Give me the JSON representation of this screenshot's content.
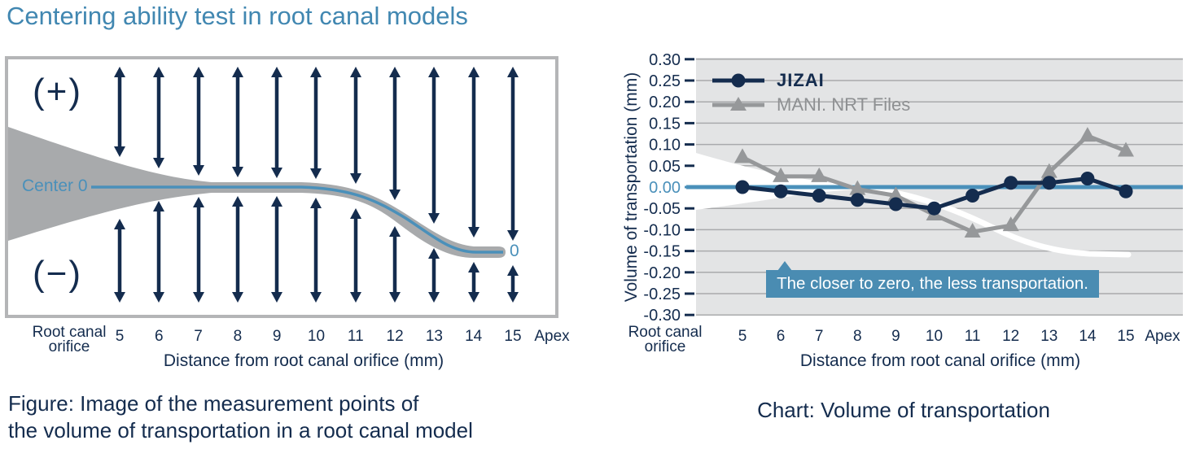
{
  "title": "Centering ability test in root canal models",
  "figure": {
    "plus_label": "(+)",
    "minus_label": "(−)",
    "center_label": "Center 0",
    "zero_label": "0",
    "x_axis": {
      "origin_line1": "Root canal",
      "origin_line2": "orifice",
      "ticks": [
        "5",
        "6",
        "7",
        "8",
        "9",
        "10",
        "11",
        "12",
        "13",
        "14",
        "15"
      ],
      "end_label": "Apex",
      "title": "Distance from root canal orifice (mm)"
    },
    "caption_line1": "Figure: Image of the measurement points of",
    "caption_line2": "the volume of transportation in a root canal model"
  },
  "chart": {
    "caption": "Chart: Volume of transportation",
    "legend": [
      {
        "label": "JIZAI"
      },
      {
        "label": "MANI. NRT Files"
      }
    ],
    "x_axis": {
      "origin_line1": "Root canal",
      "origin_line2": "orifice",
      "ticks": [
        "5",
        "6",
        "7",
        "8",
        "9",
        "10",
        "11",
        "12",
        "13",
        "14",
        "15"
      ],
      "end_label": "Apex",
      "title": "Distance from root canal orifice (mm)"
    }
  },
  "chart_data": {
    "type": "line",
    "title": "Chart: Volume of transportation",
    "xlabel": "Distance from root canal orifice (mm)",
    "ylabel": "Volume of transportation (mm)",
    "x": [
      5,
      6,
      7,
      8,
      9,
      10,
      11,
      12,
      13,
      14,
      15
    ],
    "x_start_label": "Root canal orifice",
    "x_end_label": "Apex",
    "series": [
      {
        "name": "JIZAI",
        "color": "#142c4e",
        "marker": "circle",
        "values": [
          0.0,
          -0.01,
          -0.02,
          -0.03,
          -0.04,
          -0.05,
          -0.02,
          0.01,
          0.01,
          0.02,
          -0.01
        ]
      },
      {
        "name": "MANI. NRT Files",
        "color": "#96989a",
        "marker": "triangle",
        "values": [
          0.07,
          0.025,
          0.025,
          -0.005,
          -0.02,
          -0.065,
          -0.105,
          -0.09,
          0.035,
          0.12,
          0.085
        ]
      }
    ],
    "ylim": [
      -0.3,
      0.3
    ],
    "ytick_step": 0.05,
    "y_tick_labels": [
      "0.30",
      "0.25",
      "0.20",
      "0.15",
      "0.10",
      "0.05",
      "0.00",
      "-0.05",
      "-0.10",
      "-0.15",
      "-0.20",
      "-0.25",
      "-0.30"
    ],
    "grid": true,
    "legend_position": "top-left",
    "annotation": "The closer to zero, the less transportation.",
    "zero_line": true
  },
  "colors": {
    "title_blue": "#4187b1",
    "navy": "#142c4e",
    "accent_blue": "#4a90ba",
    "gray_line": "#96989a",
    "legend_gray": "#8e9092",
    "chart_bg": "#e3e4e5",
    "gridline": "#a9aaac",
    "annotation_bg": "#4a8cb2",
    "figure_border": "#b4b5b7",
    "canal_gray": "#a8aaac"
  }
}
